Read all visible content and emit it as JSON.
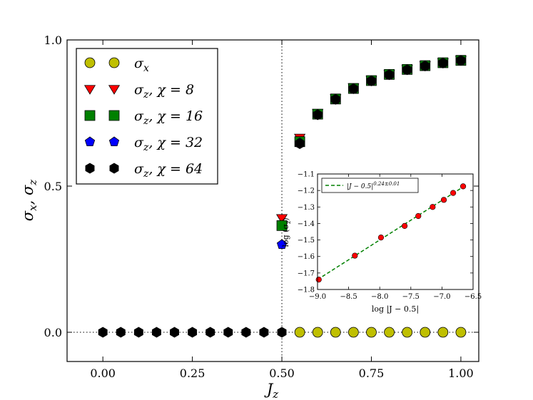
{
  "chart_data": {
    "type": "scatter",
    "xlabel": "J_z",
    "ylabel": "σ_x, σ_z",
    "xlim": [
      -0.1,
      1.05
    ],
    "ylim": [
      -0.1,
      1.0
    ],
    "xticks": [
      "0.00",
      "0.25",
      "0.50",
      "0.75",
      "1.00"
    ],
    "xtick_values": [
      0,
      0.25,
      0.5,
      0.75,
      1.0
    ],
    "yticks": [
      "0.0",
      "0.5",
      "1.0"
    ],
    "ytick_values": [
      0,
      0.5,
      1.0
    ],
    "critical_line_x": 0.5,
    "zero_line_y": 0.0,
    "legend_position": "top-left",
    "colors": {
      "sigma_x": "#bfbf00",
      "chi8": "#ff0000",
      "chi16": "#008000",
      "chi32": "#0000ff",
      "chi64": "#000000",
      "fit": "#008000"
    },
    "series": [
      {
        "name": "σ_x",
        "legend_label": "σx",
        "marker": "circle",
        "color_key": "sigma_x",
        "x": [
          0.55,
          0.6,
          0.65,
          0.7,
          0.75,
          0.8,
          0.85,
          0.9,
          0.95,
          1.0
        ],
        "y": [
          0,
          0,
          0,
          0,
          0,
          0,
          0,
          0,
          0,
          0
        ]
      },
      {
        "name": "σ_z, χ = 8",
        "legend_label": "σz, χ = 8",
        "marker": "triangle-down",
        "color_key": "chi8",
        "x": [
          0.5,
          0.55,
          0.6,
          0.65,
          0.7,
          0.75,
          0.8,
          0.85,
          0.9,
          0.95,
          1.0
        ],
        "y": [
          0.39,
          0.665,
          0.75,
          0.8,
          0.837,
          0.863,
          0.883,
          0.9,
          0.913,
          0.923,
          0.931
        ]
      },
      {
        "name": "σ_z, χ = 16",
        "legend_label": "σz, χ = 16",
        "marker": "square",
        "color_key": "chi16",
        "x": [
          0.5,
          0.55,
          0.6,
          0.65,
          0.7,
          0.75,
          0.8,
          0.85,
          0.9,
          0.95,
          1.0
        ],
        "y": [
          0.365,
          0.652,
          0.746,
          0.798,
          0.834,
          0.861,
          0.882,
          0.899,
          0.912,
          0.922,
          0.93
        ]
      },
      {
        "name": "σ_z, χ = 32",
        "legend_label": "σz, χ = 32",
        "marker": "pentagon",
        "color_key": "chi32",
        "x": [
          0.5,
          0.55,
          0.6,
          0.65,
          0.7,
          0.75,
          0.8,
          0.85,
          0.9,
          0.95,
          1.0
        ],
        "y": [
          0.3,
          0.648,
          0.745,
          0.797,
          0.833,
          0.86,
          0.881,
          0.898,
          0.911,
          0.921,
          0.93
        ]
      },
      {
        "name": "σ_z, χ = 64",
        "legend_label": "σz, χ = 64",
        "marker": "hexagon",
        "color_key": "chi64",
        "x": [
          0,
          0.05,
          0.1,
          0.15,
          0.2,
          0.25,
          0.3,
          0.35,
          0.4,
          0.45,
          0.5,
          0.55,
          0.6,
          0.65,
          0.7,
          0.75,
          0.8,
          0.85,
          0.9,
          0.95,
          1.0
        ],
        "y": [
          0,
          0,
          0,
          0,
          0,
          0,
          0,
          0,
          0,
          0,
          0,
          0.645,
          0.744,
          0.797,
          0.833,
          0.86,
          0.881,
          0.898,
          0.911,
          0.921,
          0.93
        ]
      }
    ],
    "inset": {
      "xlabel": "log |J − 0.5|",
      "ylabel": "log (σz)",
      "xlim": [
        -9.0,
        -6.5
      ],
      "ylim": [
        -1.8,
        -1.1
      ],
      "xticks": [
        "−9.0",
        "−8.5",
        "−8.0",
        "−7.5",
        "−7.0",
        "−6.5"
      ],
      "xtick_values": [
        -9.0,
        -8.5,
        -8.0,
        -7.5,
        -7.0,
        -6.5
      ],
      "yticks": [
        "−1.8",
        "−1.7",
        "−1.6",
        "−1.5",
        "−1.4",
        "−1.3",
        "−1.2",
        "−1.1"
      ],
      "ytick_values": [
        -1.8,
        -1.7,
        -1.6,
        -1.5,
        -1.4,
        -1.3,
        -1.2,
        -1.1
      ],
      "legend_label": "|J − 0.5|0.24±0.01",
      "legend_position": "top-left",
      "points": {
        "x": [
          -8.98,
          -8.4,
          -7.98,
          -7.6,
          -7.38,
          -7.15,
          -6.97,
          -6.82,
          -6.66
        ],
        "y": [
          -1.74,
          -1.595,
          -1.485,
          -1.415,
          -1.355,
          -1.3,
          -1.257,
          -1.215,
          -1.175
        ]
      },
      "fit": {
        "slope": 0.24,
        "intercept": 0.42
      }
    }
  }
}
